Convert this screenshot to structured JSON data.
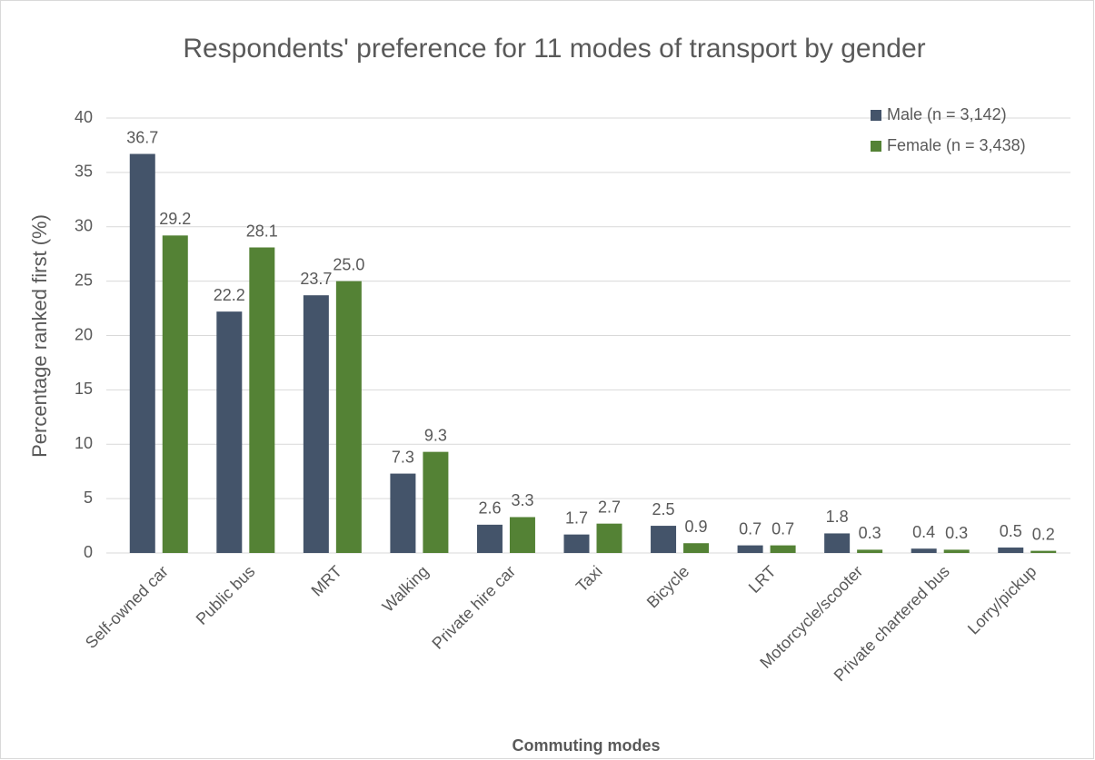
{
  "chart_data": {
    "type": "bar",
    "title": "Respondents' preference for 11 modes of transport by gender",
    "x_label": "Commuting modes",
    "y_label": "Percentage ranked first (%)",
    "categories": [
      "Self-owned car",
      "Public bus",
      "MRT",
      "Walking",
      "Private hire car",
      "Taxi",
      "Bicycle",
      "LRT",
      "Motorcycle/scooter",
      "Private chartered bus",
      "Lorry/pickup"
    ],
    "series": [
      {
        "name": "Male (n = 3,142)",
        "color": "#44546a",
        "values": [
          36.7,
          22.2,
          23.7,
          7.3,
          2.6,
          1.7,
          2.5,
          0.7,
          1.8,
          0.4,
          0.5
        ],
        "value_labels": [
          "36.7",
          "22.2",
          "23.7",
          "7.3",
          "2.6",
          "1.7",
          "2.5",
          "0.7",
          "1.8",
          "0.4",
          "0.5"
        ]
      },
      {
        "name": "Female (n = 3,438)",
        "color": "#548235",
        "values": [
          29.2,
          28.1,
          25.0,
          9.3,
          3.3,
          2.7,
          0.9,
          0.7,
          0.3,
          0.3,
          0.2
        ],
        "value_labels": [
          "29.2",
          "28.1",
          "25.0",
          "9.3",
          "3.3",
          "2.7",
          "0.9",
          "0.7",
          "0.3",
          "0.3",
          "0.2"
        ]
      }
    ],
    "ylim": [
      0,
      40
    ],
    "yticks": [
      0,
      5,
      10,
      15,
      20,
      25,
      30,
      35,
      40
    ],
    "grid": true,
    "legend": "top-right"
  }
}
